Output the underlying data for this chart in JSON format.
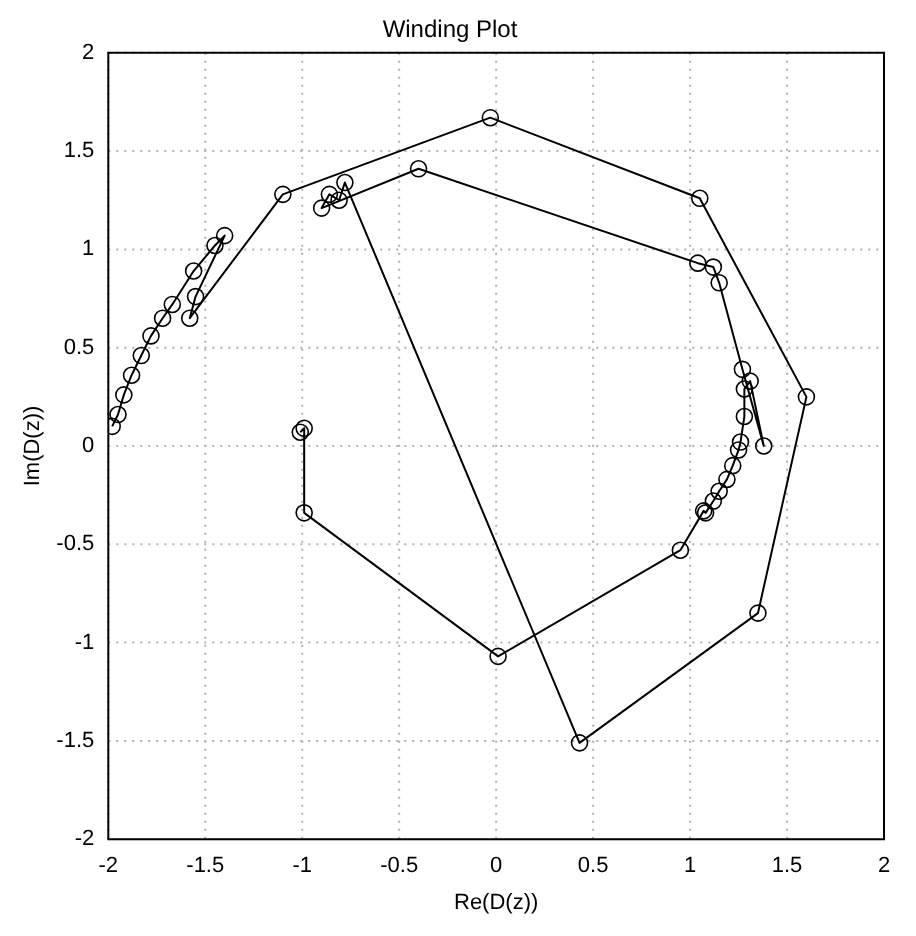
{
  "chart_data": {
    "type": "line",
    "title": "Winding Plot",
    "xlabel": "Re(D(z))",
    "ylabel": "Im(D(z))",
    "xlim": [
      -2,
      2
    ],
    "ylim": [
      -2,
      2
    ],
    "xticks": [
      -2,
      -1.5,
      -1,
      -0.5,
      0,
      0.5,
      1,
      1.5,
      2
    ],
    "yticks": [
      -2,
      -1.5,
      -1,
      -0.5,
      0,
      0.5,
      1,
      1.5,
      2
    ],
    "grid": true,
    "legend": false,
    "marker": "circle",
    "line_style": "solid",
    "series": [
      {
        "color": "#000000",
        "x": [
          -1.01,
          -0.99,
          -0.99,
          0.01,
          0.95,
          1.07,
          1.08,
          1.12,
          1.15,
          1.19,
          1.22,
          1.25,
          1.26,
          1.28,
          1.28,
          1.31,
          1.38,
          1.27,
          1.15,
          1.12,
          1.04,
          -0.4,
          -0.9,
          -0.86,
          -0.81,
          -0.78,
          0.43,
          1.35,
          1.6,
          1.05,
          -0.03,
          -1.1,
          -1.58,
          -1.55,
          -1.4,
          -1.45,
          -1.56,
          -1.67,
          -1.72,
          -1.78,
          -1.83,
          -1.88,
          -1.92,
          -1.95,
          -1.98
        ],
        "values": [
          0.07,
          0.09,
          -0.34,
          -1.07,
          -0.53,
          -0.33,
          -0.34,
          -0.28,
          -0.23,
          -0.17,
          -0.1,
          -0.02,
          0.02,
          0.15,
          0.29,
          0.33,
          0.0,
          0.39,
          0.83,
          0.91,
          0.93,
          1.41,
          1.21,
          1.28,
          1.25,
          1.34,
          -1.51,
          -0.85,
          0.25,
          1.26,
          1.67,
          1.28,
          0.65,
          0.76,
          1.07,
          1.02,
          0.89,
          0.72,
          0.65,
          0.56,
          0.46,
          0.36,
          0.26,
          0.16,
          0.1
        ]
      }
    ]
  }
}
